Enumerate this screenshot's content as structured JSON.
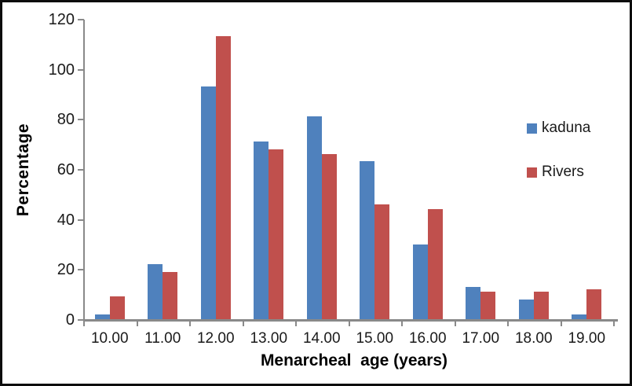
{
  "figure": {
    "background_color": "#ffffff",
    "border_color": "#0d0d0d",
    "axis_color": "#898989",
    "text_color": "#000000"
  },
  "chart_data": {
    "type": "bar",
    "title": "",
    "xlabel": "Menarcheal  age (years)",
    "ylabel": "Percentage",
    "categories": [
      "10.00",
      "11.00",
      "12.00",
      "13.00",
      "14.00",
      "15.00",
      "16.00",
      "17.00",
      "18.00",
      "19.00"
    ],
    "series": [
      {
        "name": "kaduna",
        "color": "#4F81BD",
        "values": [
          2,
          22,
          93,
          71,
          81,
          63,
          30,
          13,
          8,
          2
        ]
      },
      {
        "name": "Rivers",
        "color": "#C0504D",
        "values": [
          9,
          19,
          113,
          68,
          66,
          46,
          44,
          11,
          11,
          12
        ]
      }
    ],
    "ylim": [
      0,
      120
    ],
    "yticks": [
      0,
      20,
      40,
      60,
      80,
      100,
      120
    ],
    "ytick_labels": [
      "0",
      "20",
      "40",
      "60",
      "80",
      "100",
      "120"
    ],
    "grid": false,
    "legend_position": "right-inside"
  }
}
